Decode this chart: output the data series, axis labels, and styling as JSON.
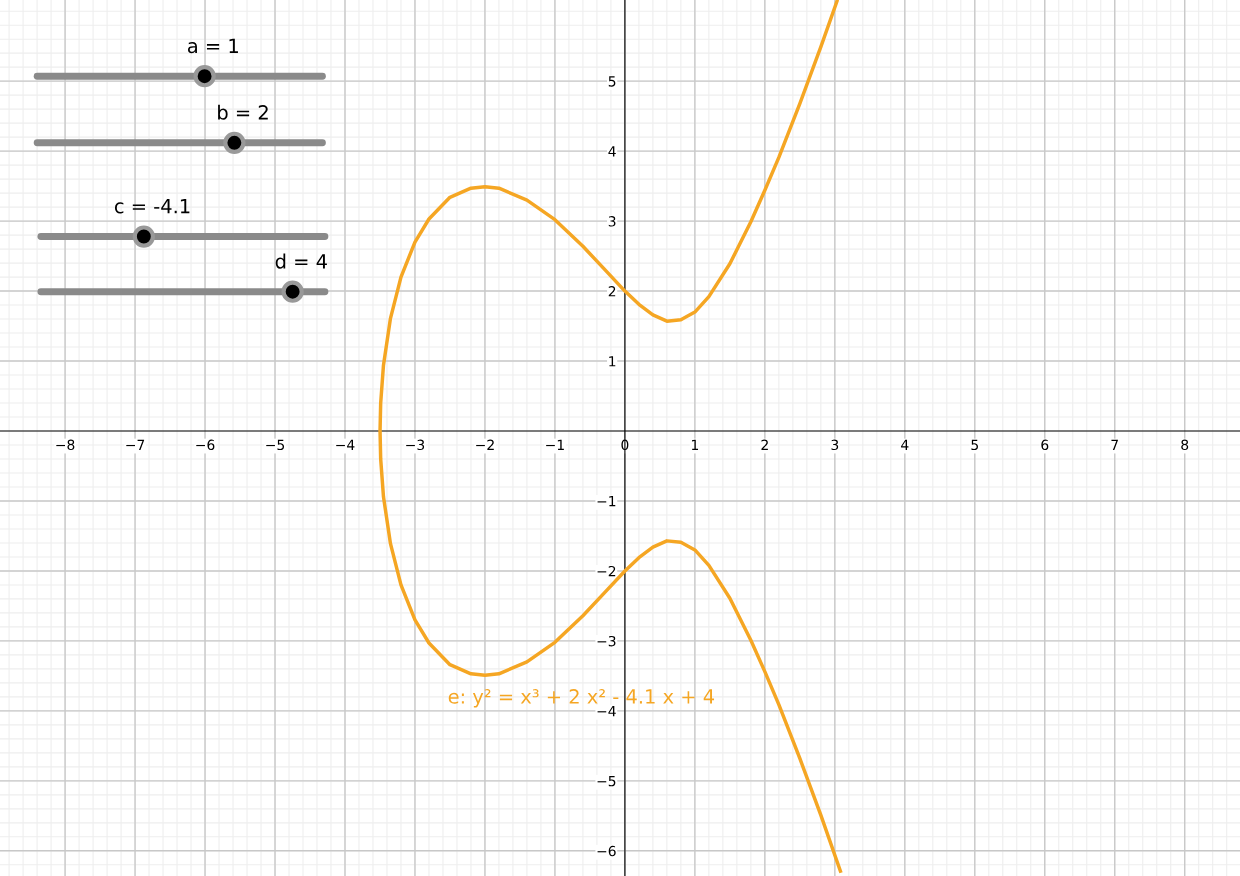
{
  "chart_data": {
    "type": "line",
    "xlim": [
      -8.93,
      8.79
    ],
    "ylim": [
      -6.36,
      6.16
    ],
    "xticks": [
      {
        "value": -8,
        "label": "−8"
      },
      {
        "value": -7,
        "label": "−7"
      },
      {
        "value": -6,
        "label": "−6"
      },
      {
        "value": -5,
        "label": "−5"
      },
      {
        "value": -4,
        "label": "−4"
      },
      {
        "value": -3,
        "label": "−3"
      },
      {
        "value": -2,
        "label": "−2"
      },
      {
        "value": -1,
        "label": "−1"
      },
      0,
      1,
      2,
      3,
      4,
      5,
      6,
      7,
      8
    ],
    "yticks": [
      {
        "value": -6,
        "label": "−6"
      },
      {
        "value": -5,
        "label": "−5"
      },
      {
        "value": -4,
        "label": "−4"
      },
      {
        "value": -3,
        "label": "−3"
      },
      {
        "value": -2,
        "label": "−2"
      },
      {
        "value": -1,
        "label": "−1"
      },
      1,
      2,
      3,
      4,
      5
    ],
    "grid": true,
    "series": [
      {
        "color": "#f5a623",
        "x": [
          3.08,
          2.8,
          2.5,
          2.2,
          2.0,
          1.8,
          1.5,
          1.2,
          1.0,
          0.8,
          0.6,
          0.4,
          0.2,
          0,
          -0.3,
          -0.6,
          -1.0,
          -1.4,
          -1.8,
          -2.0,
          -2.2,
          -2.5,
          -2.8,
          -3.0,
          -3.2,
          -3.35,
          -3.45,
          -3.49,
          -3.499,
          -3.49,
          -3.45,
          -3.35,
          -3.2,
          -3.0,
          -2.8,
          -2.5,
          -2.2,
          -2.0,
          -1.8,
          -1.4,
          -1.0,
          -0.6,
          -0.3,
          0,
          0.2,
          0.4,
          0.6,
          0.8,
          1.0,
          1.2,
          1.5,
          1.8,
          2.0,
          2.2,
          2.5,
          2.8,
          3.03
        ],
        "values": [
          -6.29,
          -5.49,
          -4.68,
          -3.91,
          -3.44,
          -2.99,
          -2.39,
          -1.92,
          -1.7,
          -1.59,
          -1.57,
          -1.66,
          -1.81,
          -2.0,
          -2.32,
          -2.64,
          -3.02,
          -3.3,
          -3.47,
          -3.49,
          -3.47,
          -3.34,
          -3.03,
          -2.7,
          -2.2,
          -1.61,
          -0.94,
          -0.4,
          0,
          0.4,
          0.94,
          1.61,
          2.2,
          2.7,
          3.03,
          3.34,
          3.47,
          3.49,
          3.47,
          3.3,
          3.02,
          2.64,
          2.32,
          2.0,
          1.81,
          1.66,
          1.57,
          1.59,
          1.7,
          1.92,
          2.39,
          2.99,
          3.44,
          3.91,
          4.68,
          5.49,
          6.14
        ]
      }
    ],
    "annotations": [
      "e: y² = x³ + 2 x² - 4.1 x + 4",
      "a = 1",
      "b = 2",
      "c = -4.1",
      "d = 4"
    ]
  }
}
